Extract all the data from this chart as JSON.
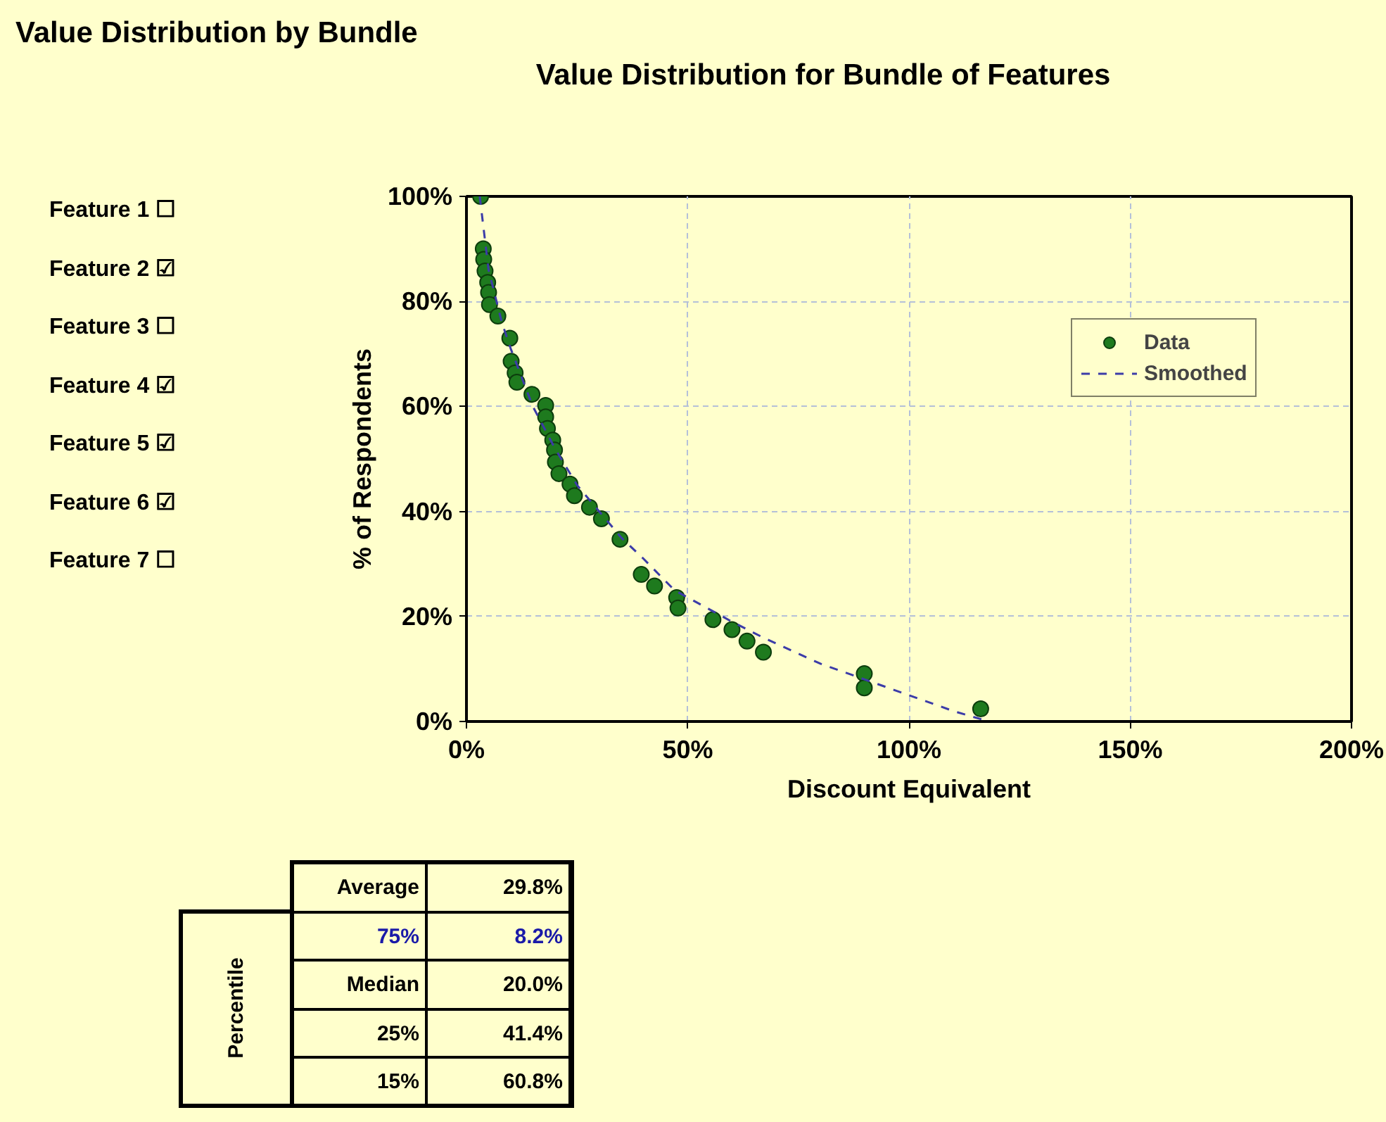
{
  "chart_data": {
    "type": "scatter",
    "title": "Value Distribution by Bundle",
    "subtitle": "Value Distribution for Bundle of Features",
    "xlabel": "Discount Equivalent",
    "ylabel": "% of Respondents",
    "xlim": [
      0,
      200
    ],
    "ylim": [
      0,
      100
    ],
    "xticks": [
      {
        "value": 0,
        "label": "0%"
      },
      {
        "value": 50,
        "label": "50%"
      },
      {
        "value": 100,
        "label": "100%"
      },
      {
        "value": 150,
        "label": "150%"
      },
      {
        "value": 200,
        "label": "200%"
      }
    ],
    "yticks": [
      {
        "value": 0,
        "label": "0%"
      },
      {
        "value": 20,
        "label": "20%"
      },
      {
        "value": 40,
        "label": "40%"
      },
      {
        "value": 60,
        "label": "60%"
      },
      {
        "value": 80,
        "label": "80%"
      },
      {
        "value": 100,
        "label": "100%"
      }
    ],
    "grid": true,
    "legend": "top right",
    "series": [
      {
        "name": "Data",
        "marker": "circle",
        "color": "#1e7a1e",
        "x": [
          3.2,
          3.8,
          3.9,
          4.2,
          4.8,
          5.0,
          5.2,
          7.1,
          9.8,
          10.1,
          11.0,
          11.4,
          14.8,
          17.9,
          17.9,
          18.3,
          19.5,
          19.9,
          20.1,
          20.9,
          23.4,
          24.4,
          27.8,
          30.5,
          34.7,
          39.5,
          42.5,
          47.5,
          47.8,
          55.7,
          60.0,
          63.4,
          67.1,
          89.9,
          89.9,
          116.2
        ],
        "values": [
          100,
          90,
          88,
          85.8,
          83.6,
          81.7,
          79.4,
          77.2,
          73.0,
          68.6,
          66.4,
          64.6,
          62.3,
          60.2,
          58.0,
          55.8,
          53.6,
          51.7,
          49.4,
          47.2,
          45.2,
          43.0,
          40.8,
          38.6,
          34.7,
          28.0,
          25.8,
          23.6,
          21.6,
          19.4,
          17.5,
          15.3,
          13.2,
          9.1,
          6.4,
          2.4
        ]
      },
      {
        "name": "Smoothed",
        "type": "line",
        "color": "#3c3ca8",
        "line_style": "dashed",
        "marker": "none",
        "x": [
          3,
          5,
          8,
          10,
          15,
          20,
          25,
          30,
          35,
          40,
          47,
          60,
          67,
          80,
          90,
          100,
          110,
          118
        ],
        "values": [
          100,
          86,
          76,
          71,
          60,
          52,
          45,
          40,
          35,
          31,
          25,
          19,
          16,
          11,
          8,
          5,
          2,
          0
        ]
      }
    ],
    "annotations": [
      "Feature 1 ☐",
      "Feature 2 ☑",
      "Feature 3 ☐",
      "Feature 4 ☑",
      "Feature 5 ☑",
      "Feature 6 ☑",
      "Feature 7 ☐",
      "Average",
      "29.8%",
      "75%",
      "8.2%",
      "Median",
      "20.0%",
      "25%",
      "41.4%",
      "15%",
      "60.8%",
      "Percentile"
    ]
  }
}
